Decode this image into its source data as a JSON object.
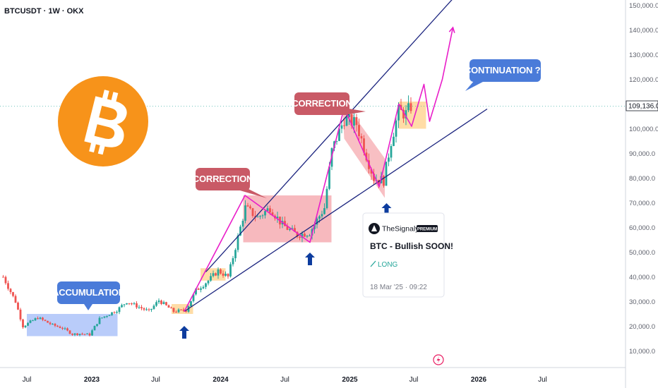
{
  "header": {
    "symbol": "BTCUSDT · 1W · OKX"
  },
  "axes": {
    "y_ticks": [
      "150,000.0",
      "140,000.0",
      "130,000.0",
      "120,000.0",
      "110,000.0",
      "100,000.0",
      "90,000.0",
      "80,000.0",
      "70,000.0",
      "60,000.0",
      "50,000.0",
      "40,000.0",
      "30,000.0",
      "20,000.0",
      "10,000.0"
    ],
    "x_ticks": [
      {
        "label": "Jul",
        "bold": false
      },
      {
        "label": "2023",
        "bold": true
      },
      {
        "label": "Jul",
        "bold": false
      },
      {
        "label": "2024",
        "bold": true
      },
      {
        "label": "Jul",
        "bold": false
      },
      {
        "label": "2025",
        "bold": true
      },
      {
        "label": "Jul",
        "bold": false
      },
      {
        "label": "2026",
        "bold": true
      },
      {
        "label": "Jul",
        "bold": false
      }
    ]
  },
  "last_price": "109,136.0",
  "annotations": {
    "accumulation": "ACCUMULATION",
    "correction_1": "CORRECTION",
    "correction_2": "CORRECTION",
    "continuation": "CONTINUATION ??"
  },
  "card": {
    "author": "TheSignalyst",
    "badge": "PREMIUM",
    "title": "BTC - Bullish SOON!",
    "direction": "LONG",
    "date": "18 Mar '25 · 09:22"
  },
  "colors": {
    "bull": "#26a69a",
    "bear": "#ef5350",
    "channel": "#1a237e",
    "projection": "#e91ec9",
    "accumulation_zone": "#7fa3f5",
    "correction_zone": "#f28b92",
    "consolidation_zone": "#ffc46b",
    "callout_blue": "#4a7bd9",
    "callout_red": "#c95a66",
    "btc_orange": "#f7931a",
    "arrow": "#0d3c9e"
  },
  "chart_data": {
    "type": "candlestick",
    "instrument": "BTCUSDT",
    "timeframe": "1W",
    "exchange": "OKX",
    "y_range": [
      5000,
      152000
    ],
    "x_range": [
      "2022-04-20",
      "2026-10-15"
    ],
    "last_price": 109136,
    "ohlc_series": [
      {
        "segment": "2022",
        "x": [
          "2022-04-25",
          "2022-05-30",
          "2022-06-20",
          "2022-08-01",
          "2022-09-12",
          "2022-10-10",
          "2022-11-07",
          "2022-11-28",
          "2022-12-26"
        ],
        "close": [
          40000,
          30000,
          20000,
          23500,
          20500,
          19300,
          16800,
          17000,
          16600
        ]
      },
      {
        "segment": "2023",
        "x": [
          "2023-01-23",
          "2023-03-13",
          "2023-04-10",
          "2023-06-12",
          "2023-07-10",
          "2023-08-21",
          "2023-09-25",
          "2023-10-23",
          "2023-11-27",
          "2023-12-25"
        ],
        "close": [
          23000,
          26500,
          30000,
          26000,
          30500,
          26000,
          26500,
          34500,
          38500,
          42500
        ]
      },
      {
        "segment": "2024",
        "x": [
          "2024-01-22",
          "2024-02-12",
          "2024-03-11",
          "2024-04-15",
          "2024-05-20",
          "2024-06-24",
          "2024-08-05",
          "2024-09-09",
          "2024-10-21",
          "2024-11-11",
          "2024-12-16"
        ],
        "close": [
          40000,
          52000,
          68000,
          64000,
          68000,
          61000,
          57000,
          58000,
          68000,
          91000,
          104000
        ]
      },
      {
        "segment": "2025",
        "x": [
          "2025-01-20",
          "2025-02-24",
          "2025-03-10",
          "2025-04-07",
          "2025-04-28",
          "2025-05-19",
          "2025-06-09",
          "2025-06-23"
        ],
        "close": [
          102000,
          86000,
          80000,
          79000,
          95000,
          107000,
          106000,
          109136
        ]
      }
    ],
    "zones": [
      {
        "label": "ACCUMULATION",
        "x": [
          "2022-07-01",
          "2023-03-15"
        ],
        "y": [
          16000,
          25000
        ]
      },
      {
        "label": "consolidation",
        "x": [
          "2023-08-15",
          "2023-10-15"
        ],
        "y": [
          25000,
          29000
        ]
      },
      {
        "label": "consolidation",
        "x": [
          "2023-11-05",
          "2024-01-15"
        ],
        "y": [
          38500,
          43500
        ]
      },
      {
        "label": "CORRECTION",
        "x": [
          "2024-03-05",
          "2024-11-10"
        ],
        "y": [
          54000,
          73000
        ]
      },
      {
        "label": "target",
        "x": [
          "2025-05-20",
          "2025-08-05"
        ],
        "y": [
          100000,
          111000
        ]
      }
    ],
    "channel": {
      "upper": [
        [
          "2023-11-20",
          42000
        ],
        [
          "2025-11-10",
          156000
        ]
      ],
      "lower": [
        [
          "2023-09-20",
          26000
        ],
        [
          "2026-01-25",
          108000
        ]
      ]
    },
    "projection_path": [
      [
        "2023-09-20",
        26000
      ],
      [
        "2024-03-10",
        73000
      ],
      [
        "2024-09-10",
        54000
      ],
      [
        "2024-12-16",
        108500
      ],
      [
        "2025-03-25",
        76500
      ],
      [
        "2025-05-20",
        110000
      ],
      [
        "2025-06-25",
        101000
      ],
      [
        "2025-07-30",
        118000
      ],
      [
        "2025-08-15",
        103000
      ],
      [
        "2025-09-20",
        120000
      ],
      [
        "2025-10-20",
        141000
      ]
    ],
    "bullish_arrows": [
      "2023-09-20",
      "2024-09-10",
      "2025-04-15"
    ]
  }
}
